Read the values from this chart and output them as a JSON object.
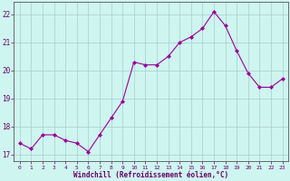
{
  "x": [
    0,
    1,
    2,
    3,
    4,
    5,
    6,
    7,
    8,
    9,
    10,
    11,
    12,
    13,
    14,
    15,
    16,
    17,
    18,
    19,
    20,
    21,
    22,
    23
  ],
  "y": [
    17.4,
    17.2,
    17.7,
    17.7,
    17.5,
    17.4,
    17.1,
    17.7,
    18.3,
    18.9,
    20.3,
    20.2,
    20.2,
    20.5,
    21.0,
    21.2,
    21.5,
    22.1,
    21.6,
    20.7,
    19.9,
    19.4,
    19.4,
    19.7
  ],
  "line_color": "#990099",
  "marker": "D",
  "marker_size": 2.0,
  "bg_color": "#cef5f0",
  "grid_color": "#aacccc",
  "xlabel": "Windchill (Refroidissement éolien,°C)",
  "xlabel_color": "#660066",
  "tick_color": "#660066",
  "xlim": [
    -0.5,
    23.5
  ],
  "ylim": [
    16.75,
    22.45
  ],
  "yticks": [
    17,
    18,
    19,
    20,
    21,
    22
  ],
  "xticks": [
    0,
    1,
    2,
    3,
    4,
    5,
    6,
    7,
    8,
    9,
    10,
    11,
    12,
    13,
    14,
    15,
    16,
    17,
    18,
    19,
    20,
    21,
    22,
    23
  ]
}
